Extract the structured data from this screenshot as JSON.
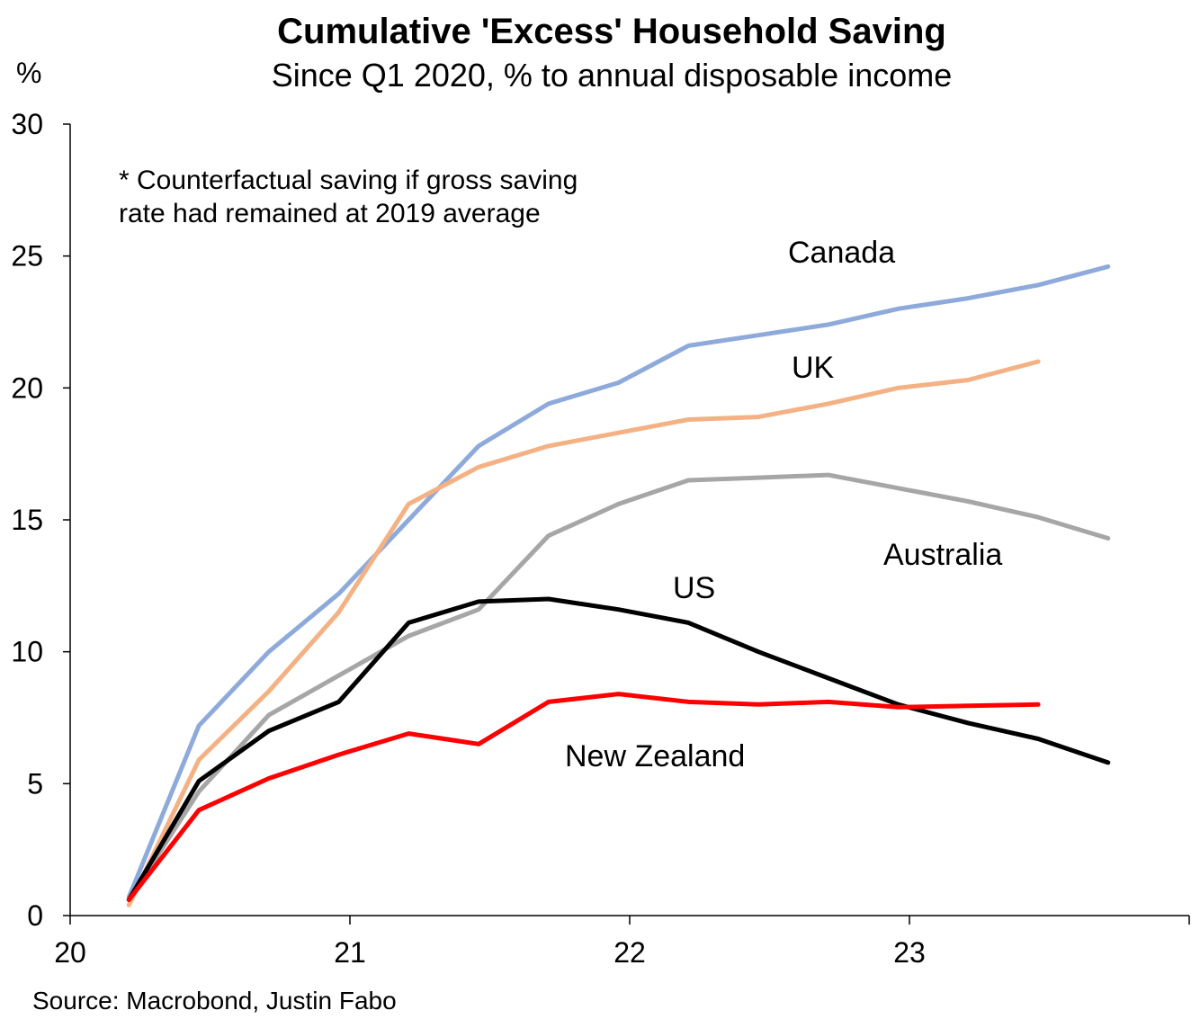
{
  "chart_data": {
    "type": "line",
    "title": "Cumulative 'Excess' Household Saving",
    "subtitle": "Since Q1 2020, % to annual disposable income",
    "ylabel": "%",
    "xlabel": "",
    "xlim": [
      20,
      24
    ],
    "ylim": [
      0,
      30
    ],
    "x_ticks": [
      "20",
      "21",
      "22",
      "23"
    ],
    "y_ticks": [
      "0",
      "5",
      "10",
      "15",
      "20",
      "25",
      "30"
    ],
    "grid": false,
    "note": "* Counterfactual saving if gross saving rate had remained at 2019 average",
    "note_lines": [
      "* Counterfactual saving if gross saving",
      "rate had remained at 2019 average"
    ],
    "source": "Source: Macrobond, Justin Fabo",
    "series": [
      {
        "name": "Canada",
        "color": "#8eaadb",
        "x": [
          20.21,
          20.46,
          20.71,
          20.96,
          21.21,
          21.46,
          21.71,
          21.96,
          22.21,
          22.46,
          22.71,
          22.96,
          23.21,
          23.46,
          23.71
        ],
        "values": [
          0.7,
          7.2,
          10.0,
          12.2,
          15.0,
          17.8,
          19.4,
          20.2,
          21.6,
          22.0,
          22.4,
          23.0,
          23.4,
          23.9,
          24.6
        ]
      },
      {
        "name": "UK",
        "color": "#f4b183",
        "x": [
          20.21,
          20.46,
          20.71,
          20.96,
          21.21,
          21.46,
          21.71,
          21.96,
          22.21,
          22.46,
          22.71,
          22.96,
          23.21,
          23.46
        ],
        "values": [
          0.4,
          5.9,
          8.5,
          11.5,
          15.6,
          17.0,
          17.8,
          18.3,
          18.8,
          18.9,
          19.4,
          20.0,
          20.3,
          21.0
        ]
      },
      {
        "name": "Australia",
        "color": "#a6a6a6",
        "x": [
          20.21,
          20.46,
          20.71,
          20.96,
          21.21,
          21.46,
          21.71,
          21.96,
          22.21,
          22.46,
          22.71,
          22.96,
          23.21,
          23.46,
          23.71
        ],
        "values": [
          0.6,
          4.7,
          7.6,
          9.1,
          10.6,
          11.6,
          14.4,
          15.6,
          16.5,
          16.6,
          16.7,
          16.2,
          15.7,
          15.1,
          14.3
        ]
      },
      {
        "name": "US",
        "color": "#000000",
        "x": [
          20.21,
          20.46,
          20.71,
          20.96,
          21.21,
          21.46,
          21.71,
          21.96,
          22.21,
          22.46,
          22.71,
          22.96,
          23.21,
          23.46,
          23.71
        ],
        "values": [
          0.6,
          5.1,
          7.0,
          8.1,
          11.1,
          11.9,
          12.0,
          11.6,
          11.1,
          10.0,
          9.0,
          8.0,
          7.3,
          6.7,
          5.8
        ]
      },
      {
        "name": "New Zealand",
        "color": "#ff0000",
        "x": [
          20.21,
          20.46,
          20.71,
          20.96,
          21.21,
          21.46,
          21.71,
          21.96,
          22.21,
          22.46,
          22.71,
          22.96,
          23.21,
          23.46
        ],
        "values": [
          0.6,
          4.0,
          5.2,
          6.1,
          6.9,
          6.5,
          8.1,
          8.4,
          8.1,
          8.0,
          8.1,
          7.9,
          7.95,
          8.0
        ]
      }
    ]
  }
}
